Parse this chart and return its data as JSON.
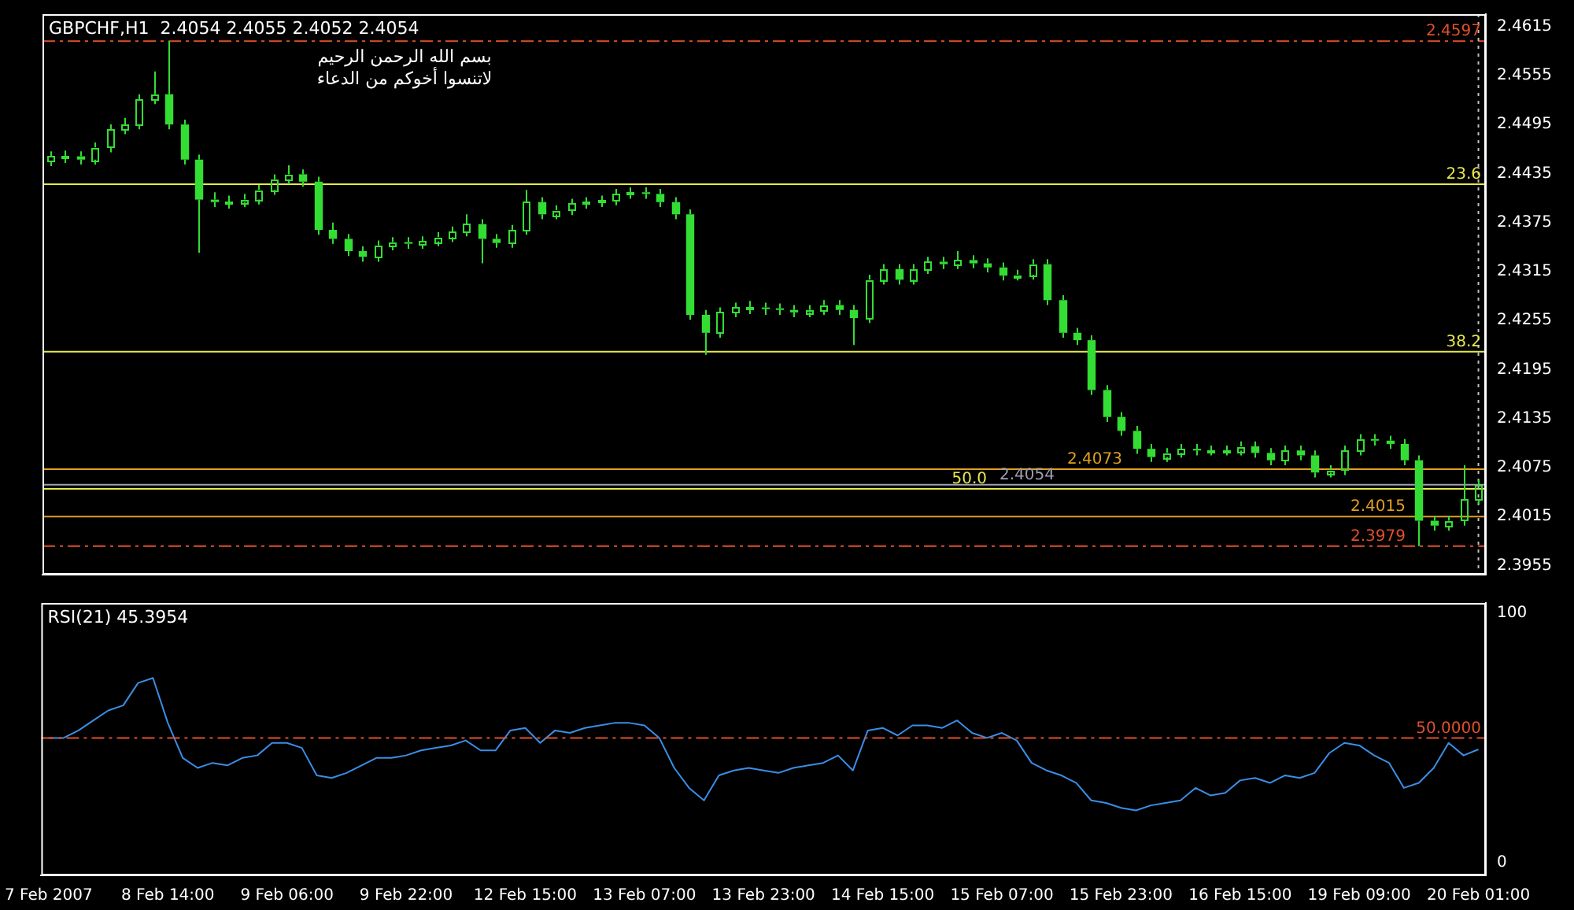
{
  "chart_data": [
    {
      "type": "candlestick",
      "title": "GBPCHF,H1  2.4054 2.4055 2.4052 2.4054",
      "annotations": [
        "بسم الله الرحمن الرحيم",
        "لاتنسوا أخوكم من الدعاء",
        {
          "text": "23.6",
          "y": 2.4422
        },
        {
          "text": "38.2",
          "y": 2.4217
        },
        {
          "text": "50.0",
          "y": 2.4049
        }
      ],
      "categories": [
        "7 Feb 2007",
        null,
        null,
        null,
        null,
        null,
        null,
        null,
        "8 Feb 14:00",
        null,
        null,
        null,
        null,
        null,
        null,
        null,
        "9 Feb 06:00",
        null,
        null,
        null,
        null,
        null,
        null,
        null,
        "9 Feb 22:00",
        null,
        null,
        null,
        null,
        null,
        null,
        null,
        "12 Feb 15:00",
        null,
        null,
        null,
        null,
        null,
        null,
        null,
        "13 Feb 07:00",
        null,
        null,
        null,
        null,
        null,
        null,
        null,
        "13 Feb 23:00",
        null,
        null,
        null,
        null,
        null,
        null,
        null,
        "14 Feb 15:00",
        null,
        null,
        null,
        null,
        null,
        null,
        null,
        "15 Feb 07:00",
        null,
        null,
        null,
        null,
        null,
        null,
        null,
        "15 Feb 23:00",
        null,
        null,
        null,
        null,
        null,
        null,
        null,
        "16 Feb 15:00",
        null,
        null,
        null,
        null,
        null,
        null,
        null,
        "19 Feb 09:00",
        null,
        null,
        null,
        null,
        null,
        null,
        null,
        "20 Feb 01:00"
      ],
      "series": [
        {
          "color": "#33dd33",
          "ohlc": [
            [
              2.445,
              2.4462,
              2.4444,
              2.4456
            ],
            [
              2.4456,
              2.4463,
              2.4448,
              2.4456
            ],
            [
              2.4456,
              2.4462,
              2.4446,
              2.4452
            ],
            [
              2.4452,
              2.4473,
              2.4446,
              2.4467
            ],
            [
              2.4467,
              2.4495,
              2.4461,
              2.4489
            ],
            [
              2.4489,
              2.4503,
              2.4483,
              2.4495
            ],
            [
              2.4495,
              2.4532,
              2.4489,
              2.4526
            ],
            [
              2.4526,
              2.456,
              2.452,
              2.4532
            ],
            [
              2.4532,
              2.4597,
              2.4489,
              2.4495
            ],
            [
              2.4495,
              2.4501,
              2.4446,
              2.4452
            ],
            [
              2.4452,
              2.4458,
              2.4338,
              2.4403
            ],
            [
              2.4403,
              2.4412,
              2.4394,
              2.44
            ],
            [
              2.44,
              2.4408,
              2.4392,
              2.44
            ],
            [
              2.44,
              2.441,
              2.4394,
              2.4403
            ],
            [
              2.4403,
              2.4421,
              2.4397,
              2.4415
            ],
            [
              2.4415,
              2.4434,
              2.4409,
              2.4428
            ],
            [
              2.4428,
              2.4445,
              2.4422,
              2.4434
            ],
            [
              2.4434,
              2.444,
              2.4419,
              2.4425
            ],
            [
              2.4425,
              2.4431,
              2.436,
              2.4366
            ],
            [
              2.4366,
              2.4375,
              2.4349,
              2.4355
            ],
            [
              2.4355,
              2.4361,
              2.4334,
              2.434
            ],
            [
              2.434,
              2.4346,
              2.4327,
              2.4333
            ],
            [
              2.4333,
              2.4353,
              2.4327,
              2.4347
            ],
            [
              2.4347,
              2.4357,
              2.4341,
              2.4351
            ],
            [
              2.4351,
              2.4357,
              2.4343,
              2.4349
            ],
            [
              2.4349,
              2.4358,
              2.4343,
              2.4352
            ],
            [
              2.4352,
              2.4363,
              2.4346,
              2.4357
            ],
            [
              2.4357,
              2.437,
              2.4351,
              2.4364
            ],
            [
              2.4364,
              2.4385,
              2.4358,
              2.4373
            ],
            [
              2.4373,
              2.4379,
              2.4325,
              2.4355
            ],
            [
              2.4355,
              2.4361,
              2.4344,
              2.435
            ],
            [
              2.435,
              2.4372,
              2.4344,
              2.4366
            ],
            [
              2.4366,
              2.4415,
              2.436,
              2.44
            ],
            [
              2.44,
              2.4406,
              2.4379,
              2.4385
            ],
            [
              2.4385,
              2.4396,
              2.4379,
              2.439
            ],
            [
              2.439,
              2.4404,
              2.4384,
              2.4398
            ],
            [
              2.4398,
              2.4406,
              2.4392,
              2.44
            ],
            [
              2.44,
              2.4408,
              2.4394,
              2.4402
            ],
            [
              2.4402,
              2.4416,
              2.4396,
              2.441
            ],
            [
              2.441,
              2.4418,
              2.4404,
              2.4412
            ],
            [
              2.4412,
              2.4418,
              2.4404,
              2.441
            ],
            [
              2.441,
              2.4416,
              2.4394,
              2.44
            ],
            [
              2.44,
              2.4406,
              2.4379,
              2.4385
            ],
            [
              2.4385,
              2.4391,
              2.4256,
              2.4262
            ],
            [
              2.4262,
              2.4268,
              2.4213,
              2.424
            ],
            [
              2.424,
              2.4271,
              2.4234,
              2.4265
            ],
            [
              2.4265,
              2.4277,
              2.4259,
              2.4271
            ],
            [
              2.4271,
              2.4279,
              2.4263,
              2.4271
            ],
            [
              2.4271,
              2.4277,
              2.4262,
              2.427
            ],
            [
              2.427,
              2.4276,
              2.4262,
              2.4268
            ],
            [
              2.4268,
              2.4274,
              2.4259,
              2.4265
            ],
            [
              2.4265,
              2.4274,
              2.4259,
              2.4268
            ],
            [
              2.4268,
              2.428,
              2.4262,
              2.4274
            ],
            [
              2.4274,
              2.428,
              2.4262,
              2.4268
            ],
            [
              2.4268,
              2.4274,
              2.4225,
              2.4258
            ],
            [
              2.4258,
              2.4311,
              2.4252,
              2.4305
            ],
            [
              2.4305,
              2.4324,
              2.4299,
              2.4318
            ],
            [
              2.4318,
              2.4324,
              2.4299,
              2.4305
            ],
            [
              2.4305,
              2.4324,
              2.4299,
              2.4318
            ],
            [
              2.4318,
              2.4333,
              2.4312,
              2.4327
            ],
            [
              2.4327,
              2.4333,
              2.4318,
              2.4324
            ],
            [
              2.4324,
              2.434,
              2.4318,
              2.4329
            ],
            [
              2.4329,
              2.4335,
              2.4319,
              2.4325
            ],
            [
              2.4325,
              2.4331,
              2.4314,
              2.432
            ],
            [
              2.432,
              2.4326,
              2.4304,
              2.431
            ],
            [
              2.431,
              2.4317,
              2.4304,
              2.4311
            ],
            [
              2.4311,
              2.433,
              2.4305,
              2.4324
            ],
            [
              2.4324,
              2.433,
              2.4274,
              2.428
            ],
            [
              2.428,
              2.4286,
              2.4234,
              2.424
            ],
            [
              2.424,
              2.4246,
              2.4225,
              2.4231
            ],
            [
              2.4231,
              2.4237,
              2.4164,
              2.417
            ],
            [
              2.417,
              2.4176,
              2.4131,
              2.4137
            ],
            [
              2.4137,
              2.4143,
              2.4114,
              2.412
            ],
            [
              2.412,
              2.4126,
              2.4092,
              2.4098
            ],
            [
              2.4098,
              2.4104,
              2.4082,
              2.4088
            ],
            [
              2.4088,
              2.4099,
              2.4082,
              2.4093
            ],
            [
              2.4093,
              2.4104,
              2.4087,
              2.4098
            ],
            [
              2.4098,
              2.4104,
              2.409,
              2.4096
            ],
            [
              2.4096,
              2.4102,
              2.409,
              2.4096
            ],
            [
              2.4096,
              2.4102,
              2.409,
              2.4096
            ],
            [
              2.4096,
              2.4107,
              2.409,
              2.4101
            ],
            [
              2.4101,
              2.4107,
              2.4087,
              2.4093
            ],
            [
              2.4093,
              2.4099,
              2.4078,
              2.4084
            ],
            [
              2.4084,
              2.4102,
              2.4078,
              2.4096
            ],
            [
              2.4096,
              2.4102,
              2.4084,
              2.409
            ],
            [
              2.409,
              2.4096,
              2.4063,
              2.4069
            ],
            [
              2.4069,
              2.4078,
              2.4063,
              2.4072
            ],
            [
              2.4072,
              2.4102,
              2.4066,
              2.4096
            ],
            [
              2.4096,
              2.4116,
              2.409,
              2.411
            ],
            [
              2.411,
              2.4116,
              2.4102,
              2.4108
            ],
            [
              2.4108,
              2.4114,
              2.4098,
              2.4104
            ],
            [
              2.4104,
              2.411,
              2.4078,
              2.4084
            ],
            [
              2.4084,
              2.409,
              2.3979,
              2.401
            ],
            [
              2.401,
              2.4016,
              2.3998,
              2.4004
            ],
            [
              2.4004,
              2.4016,
              2.3998,
              2.401
            ],
            [
              2.401,
              2.4078,
              2.4004,
              2.4036
            ],
            [
              2.4036,
              2.406,
              2.403,
              2.4054
            ]
          ]
        }
      ],
      "ylim": [
        2.3944,
        2.463
      ],
      "yticks": [
        2.4615,
        2.4555,
        2.4495,
        2.4435,
        2.4375,
        2.4315,
        2.4255,
        2.4195,
        2.4135,
        2.4075,
        2.4015,
        2.3955
      ],
      "tick_labels": "y",
      "ref_lines": [
        {
          "axis": "y",
          "value": 2.4597,
          "label": "2.4597",
          "color": "#e0502a",
          "line_style": "dashed"
        },
        {
          "axis": "y",
          "value": 2.4422,
          "color": "#e8e84a",
          "line_style": "solid"
        },
        {
          "axis": "y",
          "value": 2.4217,
          "color": "#e8e84a",
          "line_style": "solid"
        },
        {
          "axis": "y",
          "value": 2.4073,
          "label": "2.4073",
          "color": "#e0a020",
          "line_style": "solid"
        },
        {
          "axis": "y",
          "value": 2.4054,
          "label": "2.4054",
          "color": "#a0a0b0",
          "line_style": "solid"
        },
        {
          "axis": "y",
          "value": 2.4049,
          "color": "#e8e84a",
          "line_style": "solid"
        },
        {
          "axis": "y",
          "value": 2.4015,
          "label": "2.4015",
          "color": "#e0a020",
          "line_style": "solid"
        },
        {
          "axis": "y",
          "value": 2.3979,
          "label": "2.3979",
          "color": "#e0502a",
          "line_style": "dashed"
        },
        {
          "axis": "x",
          "value": "20 Feb 01:00",
          "label": null,
          "color": "#c0c0c0",
          "line_style": "dotted"
        }
      ]
    },
    {
      "type": "line",
      "title": "RSI(21) 45.3954",
      "marker": "none",
      "categories": [
        "7 Feb 2007",
        null,
        null,
        null,
        null,
        null,
        null,
        null,
        "8 Feb 14:00",
        null,
        null,
        null,
        null,
        null,
        null,
        null,
        "9 Feb 06:00",
        null,
        null,
        null,
        null,
        null,
        null,
        null,
        "9 Feb 22:00",
        null,
        null,
        null,
        null,
        null,
        null,
        null,
        "12 Feb 15:00",
        null,
        null,
        null,
        null,
        null,
        null,
        null,
        "13 Feb 07:00",
        null,
        null,
        null,
        null,
        null,
        null,
        null,
        "13 Feb 23:00",
        null,
        null,
        null,
        null,
        null,
        null,
        null,
        "14 Feb 15:00",
        null,
        null,
        null,
        null,
        null,
        null,
        null,
        "15 Feb 07:00",
        null,
        null,
        null,
        null,
        null,
        null,
        null,
        "15 Feb 23:00",
        null,
        null,
        null,
        null,
        null,
        null,
        null,
        "16 Feb 15:00",
        null,
        null,
        null,
        null,
        null,
        null,
        null,
        "19 Feb 09:00",
        null,
        null,
        null,
        null,
        null,
        null,
        null,
        "20 Feb 01:00"
      ],
      "series": [
        {
          "color": "#3a8ee6",
          "values": [
            50,
            50,
            53,
            57,
            61,
            63,
            72,
            74,
            56,
            42,
            38,
            40,
            39,
            42,
            43,
            48,
            48,
            46,
            35,
            34,
            36,
            39,
            42,
            42,
            43,
            45,
            46,
            47,
            49,
            45,
            45,
            53,
            54,
            48,
            53,
            52,
            54,
            55,
            56,
            56,
            55,
            50,
            38,
            30,
            25,
            35,
            37,
            38,
            37,
            36,
            38,
            39,
            40,
            43,
            37,
            53,
            54,
            51,
            55,
            55,
            54,
            57,
            52,
            50,
            52,
            49,
            40,
            37,
            35,
            32,
            25,
            24,
            22,
            21,
            23,
            24,
            25,
            30,
            27,
            28,
            33,
            34,
            32,
            35,
            34,
            36,
            44,
            48,
            47,
            43,
            40,
            30,
            32,
            38,
            48,
            43,
            45.4
          ]
        }
      ],
      "ylim": [
        -5,
        104
      ],
      "yticks": [
        0,
        100
      ],
      "ref_lines": [
        {
          "axis": "y",
          "value": 50,
          "label": "50.0000",
          "color": "#e0502a",
          "line_style": "dashed"
        }
      ]
    }
  ]
}
